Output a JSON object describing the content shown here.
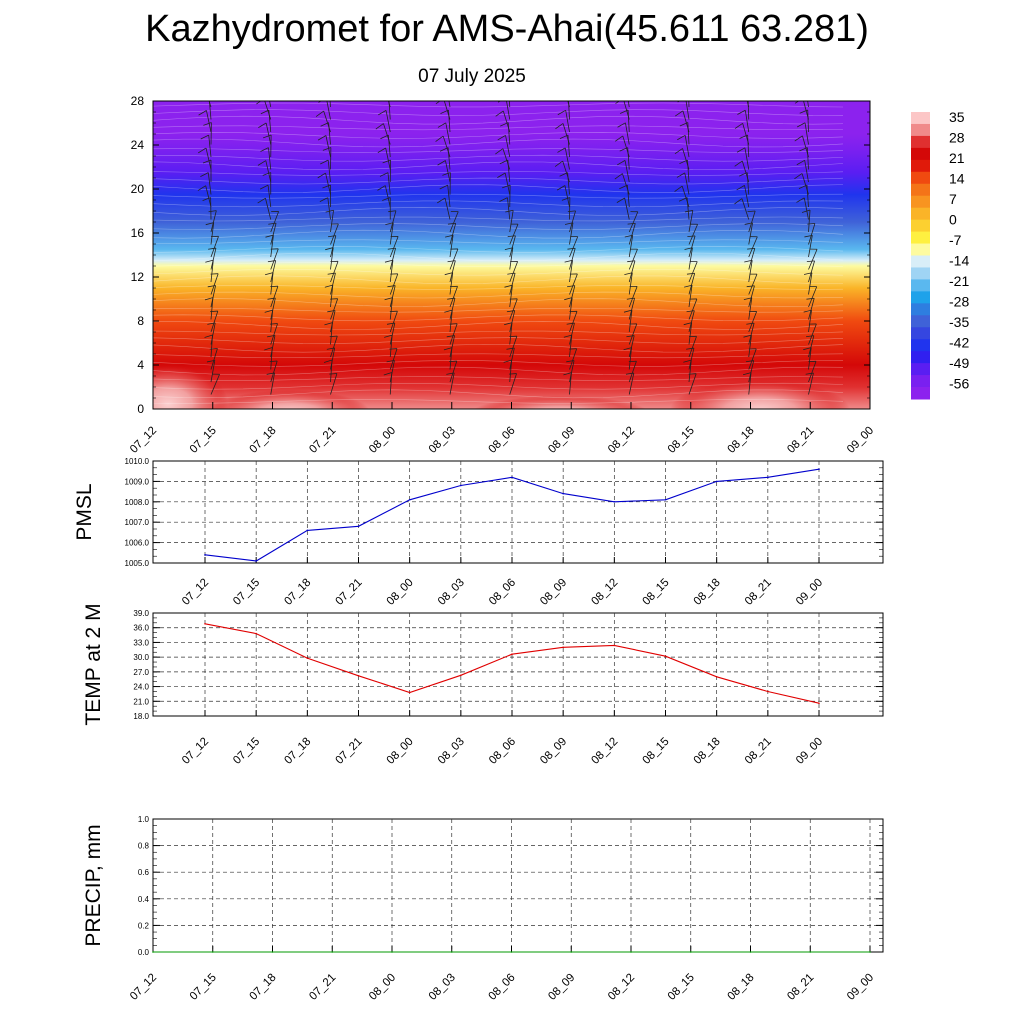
{
  "page": {
    "title": "Kazhydromet for AMS-Ahai(45.611 63.281)",
    "subtitle": "07 July 2025"
  },
  "time_labels": [
    "07_12",
    "07_15",
    "07_18",
    "07_21",
    "08_00",
    "08_03",
    "08_06",
    "08_09",
    "08_12",
    "08_15",
    "08_18",
    "08_21",
    "09_00"
  ],
  "chart_data": [
    {
      "type": "heatmap",
      "title": "",
      "ylabel": "",
      "y_ticks": [
        0,
        4,
        8,
        12,
        16,
        20,
        24,
        28
      ],
      "ylim": [
        0,
        28
      ],
      "x_tick_labels": [
        "07_12",
        "07_15",
        "07_18",
        "07_21",
        "08_00",
        "08_03",
        "08_06",
        "08_09",
        "08_12",
        "08_15",
        "08_18",
        "08_21",
        "09_00"
      ],
      "colorbar_labels": [
        "35",
        "28",
        "21",
        "14",
        "7",
        "0",
        "-7",
        "-14",
        "-21",
        "-28",
        "-35",
        "-42",
        "-49",
        "-56"
      ],
      "colorbar_colors": [
        "#fcc6c6",
        "#f08a8a",
        "#e03030",
        "#d40808",
        "#e01a0a",
        "#f04a10",
        "#f47418",
        "#f89420",
        "#fab428",
        "#fcd030",
        "#fef040",
        "#fdfba0",
        "#d8eef8",
        "#9fd4f4",
        "#5ab8ef",
        "#1ea2ea",
        "#2e7ee0",
        "#3f62d8",
        "#3546e0",
        "#2034ee",
        "#3020f0",
        "#5a1ef2",
        "#7a20f0",
        "#8c22ee"
      ],
      "level_profile": [
        {
          "km": 0,
          "temp": 30
        },
        {
          "km": 2,
          "temp": 28
        },
        {
          "km": 4,
          "temp": 25
        },
        {
          "km": 8,
          "temp": 14
        },
        {
          "km": 11,
          "temp": 4
        },
        {
          "km": 13,
          "temp": -10
        },
        {
          "km": 13.5,
          "temp": -14
        },
        {
          "km": 14.5,
          "temp": -20
        },
        {
          "km": 17,
          "temp": -32
        },
        {
          "km": 19.5,
          "temp": -40
        },
        {
          "km": 21.5,
          "temp": -50
        },
        {
          "km": 23.5,
          "temp": -54
        },
        {
          "km": 25,
          "temp": -58
        },
        {
          "km": 28,
          "temp": -60
        }
      ],
      "wind_barbs": "present"
    },
    {
      "type": "line",
      "ylabel": "PMSL",
      "x_tick_labels": [
        "07_12",
        "07_15",
        "07_18",
        "07_21",
        "08_00",
        "08_03",
        "08_06",
        "08_09",
        "08_12",
        "08_15",
        "08_18",
        "08_21",
        "09_00"
      ],
      "y_tick_labels": [
        "1005.0",
        "1006.0",
        "1007.0",
        "1008.0",
        "1009.0",
        "1010.0"
      ],
      "ylim": [
        1005.0,
        1010.0
      ],
      "color": "#0000cc",
      "values": [
        1005.4,
        1005.1,
        1006.6,
        1006.8,
        1008.1,
        1008.8,
        1009.2,
        1008.4,
        1008.0,
        1008.1,
        1009.0,
        1009.2,
        1009.6
      ]
    },
    {
      "type": "line",
      "ylabel": "TEMP at 2 M",
      "x_tick_labels": [
        "07_12",
        "07_15",
        "07_18",
        "07_21",
        "08_00",
        "08_03",
        "08_06",
        "08_09",
        "08_12",
        "08_15",
        "08_18",
        "08_21",
        "09_00"
      ],
      "y_tick_labels": [
        "18.0",
        "21.0",
        "24.0",
        "27.0",
        "30.0",
        "33.0",
        "36.0",
        "39.0"
      ],
      "ylim": [
        18.0,
        39.0
      ],
      "color": "#e00000",
      "values": [
        36.8,
        34.8,
        29.8,
        26.2,
        22.8,
        26.3,
        30.6,
        32.0,
        32.4,
        30.2,
        26.0,
        23.0,
        20.6
      ]
    },
    {
      "type": "line",
      "ylabel": "PRECIP, mm",
      "x_tick_labels": [
        "07_12",
        "07_15",
        "07_18",
        "07_21",
        "08_00",
        "08_03",
        "08_06",
        "08_09",
        "08_12",
        "08_15",
        "08_18",
        "08_21",
        "09_00"
      ],
      "y_tick_labels": [
        "0.0",
        "0.2",
        "0.4",
        "0.6",
        "0.8",
        "1.0"
      ],
      "ylim": [
        0.0,
        1.0
      ],
      "color": "#009900",
      "values": [
        0,
        0,
        0,
        0,
        0,
        0,
        0,
        0,
        0,
        0,
        0,
        0,
        0
      ]
    }
  ]
}
